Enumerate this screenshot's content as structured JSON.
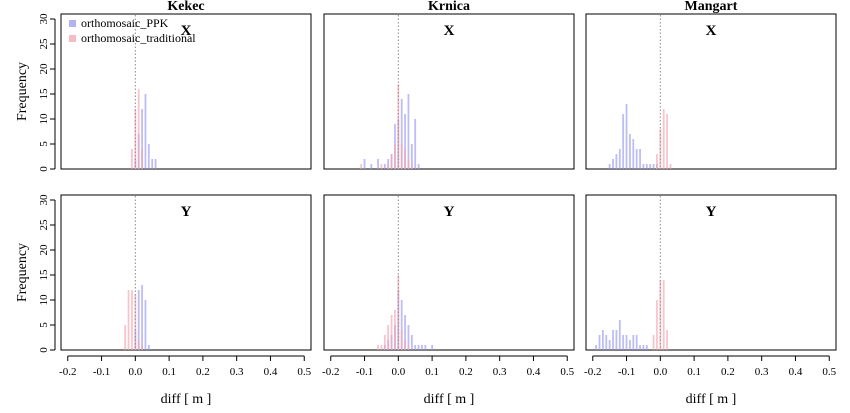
{
  "chart_data": {
    "type": "bar",
    "kind": "histogram",
    "ylabel": "Frequency",
    "xlabel": "diff [ m ]",
    "xlim": [
      -0.22,
      0.52
    ],
    "ylim": [
      0,
      31
    ],
    "xticks": [
      -0.2,
      -0.1,
      0.0,
      0.1,
      0.2,
      0.3,
      0.4,
      0.5
    ],
    "xtick_labels": [
      "-0.2",
      "-0.1",
      "0.0",
      "0.1",
      "0.2",
      "0.3",
      "0.4",
      "0.5"
    ],
    "yticks": [
      0,
      5,
      10,
      15,
      20,
      25,
      30
    ],
    "ytick_labels": [
      "0",
      "5",
      "10",
      "15",
      "20",
      "25",
      "30"
    ],
    "bin_width": 0.01,
    "reference_line_x": 0,
    "legend": {
      "placement": "top-left",
      "entries": [
        {
          "label": "orthomosaic_PPK",
          "color": "#9a9af0"
        },
        {
          "label": "orthomosaic_traditional",
          "color": "#f4a4b0"
        }
      ]
    },
    "series_names": [
      "orthomosaic_PPK",
      "orthomosaic_traditional"
    ],
    "columns": [
      "Kekec",
      "Krnica",
      "Mangart"
    ],
    "rows": [
      "X",
      "Y"
    ],
    "panels": [
      {
        "location": "Kekec",
        "component": "X",
        "show_legend": true,
        "series": [
          {
            "x": [
              0.0,
              0.01,
              0.02,
              0.03,
              0.04,
              0.05,
              0.06
            ],
            "values": [
              2,
              7,
              12,
              15,
              5,
              2,
              2
            ]
          },
          {
            "x": [
              -0.01,
              0.0,
              0.01,
              0.02
            ],
            "values": [
              4,
              12,
              16,
              4
            ]
          }
        ]
      },
      {
        "location": "Krnica",
        "component": "X",
        "show_legend": false,
        "series": [
          {
            "x": [
              -0.1,
              -0.08,
              -0.06,
              -0.04,
              -0.03,
              -0.02,
              -0.01,
              0.0,
              0.01,
              0.02,
              0.03,
              0.04,
              0.05,
              0.06
            ],
            "values": [
              2,
              1,
              2,
              1,
              2,
              3,
              9,
              10,
              14,
              11,
              15,
              5,
              10,
              1
            ]
          },
          {
            "x": [
              -0.11,
              -0.05,
              -0.03,
              -0.02,
              -0.01,
              0.0,
              0.01,
              0.02,
              0.03,
              0.04
            ],
            "values": [
              1,
              1,
              1,
              3,
              5,
              17,
              5,
              4,
              2,
              1
            ]
          }
        ]
      },
      {
        "location": "Mangart",
        "component": "X",
        "show_legend": false,
        "series": [
          {
            "x": [
              -0.15,
              -0.14,
              -0.13,
              -0.12,
              -0.11,
              -0.1,
              -0.09,
              -0.08,
              -0.07,
              -0.06,
              -0.05,
              -0.04,
              -0.03,
              -0.02,
              -0.01
            ],
            "values": [
              1,
              2,
              3,
              4,
              11,
              13,
              7,
              6,
              4,
              4,
              1,
              1,
              1,
              1,
              1
            ]
          },
          {
            "x": [
              -0.01,
              0.0,
              0.01,
              0.02,
              0.03
            ],
            "values": [
              3,
              8,
              12,
              11,
              1
            ]
          }
        ]
      },
      {
        "location": "Kekec",
        "component": "Y",
        "show_legend": false,
        "series": [
          {
            "x": [
              0.0,
              0.01,
              0.02,
              0.03,
              0.04
            ],
            "values": [
              4,
              12,
              13,
              10,
              1
            ]
          },
          {
            "x": [
              -0.03,
              -0.02,
              -0.01,
              0.0,
              0.01,
              0.02
            ],
            "values": [
              5,
              12,
              12,
              11,
              2,
              1
            ]
          }
        ]
      },
      {
        "location": "Krnica",
        "component": "Y",
        "show_legend": false,
        "series": [
          {
            "x": [
              -0.04,
              -0.03,
              -0.02,
              -0.01,
              0.0,
              0.01,
              0.02,
              0.03,
              0.04,
              0.05,
              0.06,
              0.07,
              0.08,
              0.1
            ],
            "values": [
              1,
              2,
              3,
              5,
              12,
              10,
              7,
              5,
              3,
              1,
              1,
              1,
              1,
              1
            ]
          },
          {
            "x": [
              -0.06,
              -0.05,
              -0.04,
              -0.03,
              -0.02,
              -0.01,
              0.0,
              0.01,
              0.02,
              0.03
            ],
            "values": [
              1,
              1,
              3,
              5,
              7,
              8,
              15,
              4,
              2,
              1
            ]
          }
        ]
      },
      {
        "location": "Mangart",
        "component": "Y",
        "show_legend": false,
        "series": [
          {
            "x": [
              -0.19,
              -0.18,
              -0.17,
              -0.16,
              -0.15,
              -0.14,
              -0.13,
              -0.12,
              -0.11,
              -0.1,
              -0.09,
              -0.08,
              -0.07,
              -0.06,
              -0.05,
              -0.04
            ],
            "values": [
              1,
              3,
              4,
              3,
              2,
              4,
              4,
              6,
              3,
              3,
              2,
              3,
              3,
              1,
              1,
              1
            ]
          },
          {
            "x": [
              -0.02,
              -0.01,
              0.0,
              0.01,
              0.02
            ],
            "values": [
              3,
              10,
              14,
              14,
              4
            ]
          }
        ]
      }
    ]
  }
}
